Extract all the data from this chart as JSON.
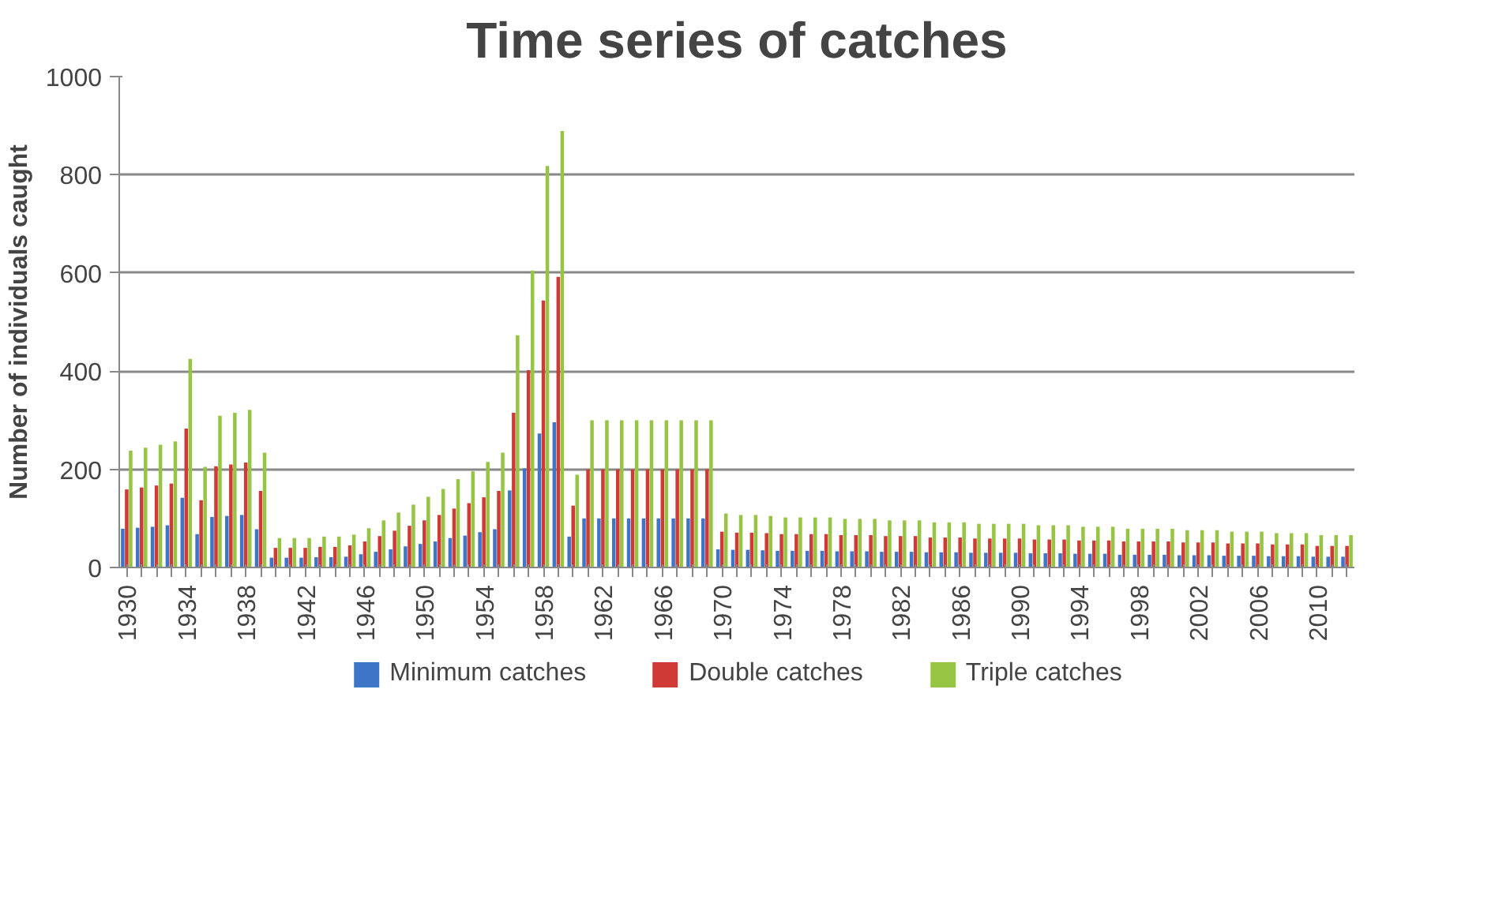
{
  "chart_data": {
    "type": "bar",
    "title": "Time series of catches",
    "ylabel": "Number of individuals caught",
    "categories": [
      "1930",
      null,
      null,
      null,
      "1934",
      null,
      null,
      null,
      "1938",
      null,
      null,
      null,
      "1942",
      null,
      null,
      null,
      "1946",
      null,
      null,
      null,
      "1950",
      null,
      null,
      null,
      "1954",
      null,
      null,
      null,
      "1958",
      null,
      null,
      null,
      "1962",
      null,
      null,
      null,
      "1966",
      null,
      null,
      null,
      "1970",
      null,
      null,
      null,
      "1974",
      null,
      null,
      null,
      "1978",
      null,
      null,
      null,
      "1982",
      null,
      null,
      null,
      "1986",
      null,
      null,
      null,
      "1990",
      null,
      null,
      null,
      "1994",
      null,
      null,
      null,
      "1998",
      null,
      null,
      null,
      "2002",
      null,
      null,
      null,
      "2006",
      null,
      null,
      null,
      "2010",
      null,
      null
    ],
    "series": [
      {
        "name": "Minimum catches",
        "color": "#3f75c6",
        "values": [
          79,
          81,
          83,
          86,
          142,
          68,
          103,
          105,
          107,
          78,
          20,
          20,
          20,
          21,
          21,
          22,
          27,
          32,
          37,
          43,
          48,
          53,
          60,
          65,
          72,
          78,
          157,
          202,
          273,
          296,
          63,
          100,
          100,
          100,
          100,
          100,
          100,
          100,
          100,
          100,
          37,
          36,
          36,
          35,
          34,
          34,
          34,
          34,
          33,
          33,
          33,
          32,
          32,
          32,
          31,
          31,
          31,
          30,
          30,
          30,
          30,
          29,
          29,
          29,
          28,
          28,
          28,
          26,
          26,
          26,
          26,
          25,
          25,
          25,
          24,
          24,
          24,
          23,
          23,
          23,
          22,
          22,
          22
        ]
      },
      {
        "name": "Double catches",
        "color": "#cf3a37",
        "values": [
          159,
          163,
          167,
          171,
          283,
          137,
          206,
          210,
          214,
          156,
          40,
          40,
          40,
          42,
          42,
          45,
          53,
          64,
          75,
          85,
          96,
          107,
          120,
          131,
          143,
          156,
          315,
          402,
          544,
          592,
          126,
          200,
          200,
          200,
          200,
          200,
          200,
          200,
          200,
          200,
          73,
          71,
          71,
          70,
          68,
          68,
          68,
          68,
          66,
          66,
          66,
          64,
          64,
          64,
          61,
          61,
          61,
          59,
          59,
          59,
          59,
          57,
          57,
          57,
          55,
          55,
          55,
          53,
          53,
          53,
          53,
          51,
          51,
          51,
          49,
          49,
          49,
          47,
          47,
          47,
          44,
          44,
          44
        ]
      },
      {
        "name": "Triple catches",
        "color": "#96c443",
        "values": [
          238,
          244,
          250,
          257,
          425,
          205,
          309,
          315,
          321,
          234,
          60,
          60,
          60,
          63,
          63,
          67,
          80,
          96,
          112,
          128,
          144,
          160,
          180,
          196,
          215,
          234,
          473,
          605,
          818,
          889,
          189,
          300,
          300,
          300,
          300,
          300,
          300,
          300,
          300,
          300,
          110,
          107,
          107,
          105,
          102,
          102,
          102,
          102,
          99,
          99,
          99,
          96,
          96,
          96,
          92,
          92,
          92,
          89,
          89,
          89,
          89,
          86,
          86,
          86,
          83,
          83,
          83,
          79,
          79,
          79,
          79,
          76,
          76,
          76,
          73,
          73,
          73,
          70,
          70,
          70,
          66,
          66,
          66
        ]
      }
    ],
    "ylim": [
      0,
      1000
    ],
    "yticks": [
      0,
      200,
      400,
      600,
      800,
      1000
    ],
    "grid": "y",
    "legend": "bottom"
  }
}
